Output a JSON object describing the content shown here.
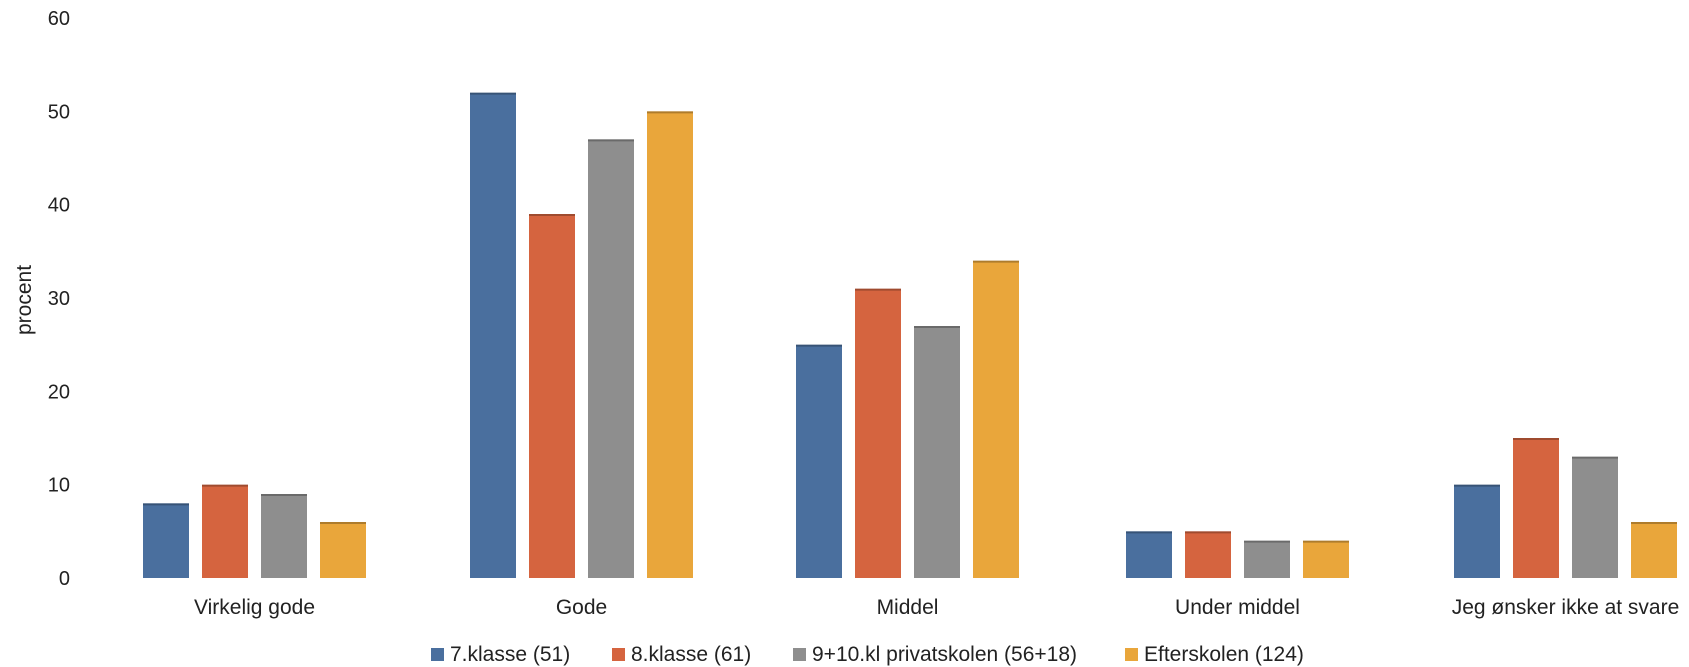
{
  "chart_data": {
    "type": "bar",
    "title": "",
    "xlabel": "",
    "ylabel": "procent",
    "ylim": [
      0,
      60
    ],
    "yticks": [
      0,
      10,
      20,
      30,
      40,
      50,
      60
    ],
    "grid": false,
    "legend_position": "bottom",
    "categories": [
      "Virkelig gode",
      "Gode",
      "Middel",
      "Under middel",
      "Jeg ønsker ikke at svare"
    ],
    "series": [
      {
        "name": "7.klasse (51)",
        "color": "#4a6f9e",
        "values": [
          8,
          52,
          25,
          5,
          10
        ]
      },
      {
        "name": "8.klasse (61)",
        "color": "#d5643f",
        "values": [
          10,
          39,
          31,
          5,
          15
        ]
      },
      {
        "name": "9+10.kl privatskolen (56+18)",
        "color": "#8e8e8e",
        "values": [
          9,
          47,
          27,
          4,
          13
        ]
      },
      {
        "name": "Efterskolen (124)",
        "color": "#e9a63b",
        "values": [
          6,
          50,
          34,
          4,
          6
        ]
      }
    ]
  }
}
